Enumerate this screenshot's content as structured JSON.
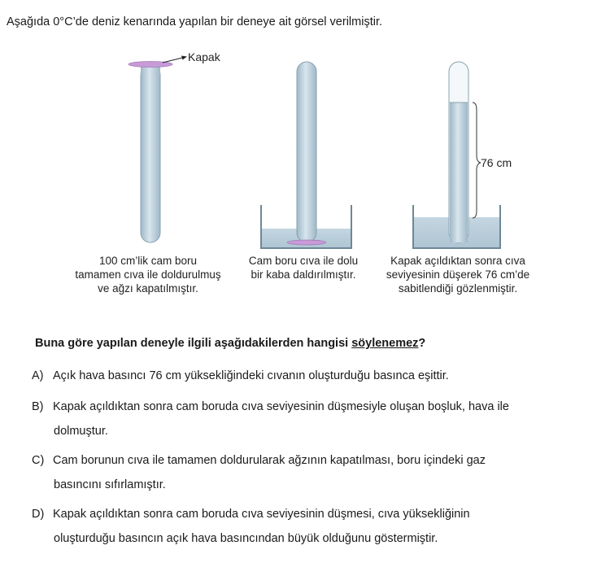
{
  "intro": "Aşağıda 0°C’de deniz kenarında yapılan bir deneye ait görsel verilmiştir.",
  "figure": {
    "kapak_label": "Kapak",
    "height_label": "76 cm",
    "captions": [
      "100 cm’lik cam boru tamamen cıva ile doldurulmuş ve ağzı kapatılmıştır.",
      "Cam boru cıva ile dolu bir kaba daldırılmıştır.",
      "Kapak açıldıktan sonra cıva seviyesinin düşerek 76 cm’de sabitlendiği gözlenmiştir."
    ],
    "colors": {
      "mercury": "#b6ccd9",
      "glass": "#cfdde6",
      "outline": "#7e95a3",
      "cap": "#c79ad8"
    }
  },
  "question": {
    "prefix": "Buna göre yapılan deneyle ilgili aşağıdakilerden hangisi ",
    "emphasis": "söylenemez",
    "suffix": "?"
  },
  "options": [
    {
      "letter": "A)",
      "line1": "Açık hava basıncı 76 cm yüksekliğindeki cıvanın oluşturduğu basınca eşittir.",
      "line2": ""
    },
    {
      "letter": "B)",
      "line1": "Kapak açıldıktan sonra cam boruda cıva seviyesinin düşmesiyle oluşan boşluk, hava ile",
      "line2": "dolmuştur."
    },
    {
      "letter": "C)",
      "line1": "Cam borunun cıva ile tamamen doldurularak ağzının kapatılması, boru içindeki gaz",
      "line2": "basıncını sıfırlamıştır."
    },
    {
      "letter": "D)",
      "line1": "Kapak açıldıktan sonra cam boruda cıva seviyesinin düşmesi, cıva yüksekliğinin",
      "line2": "oluşturduğu basıncın açık hava basıncından büyük olduğunu göstermiştir."
    }
  ]
}
